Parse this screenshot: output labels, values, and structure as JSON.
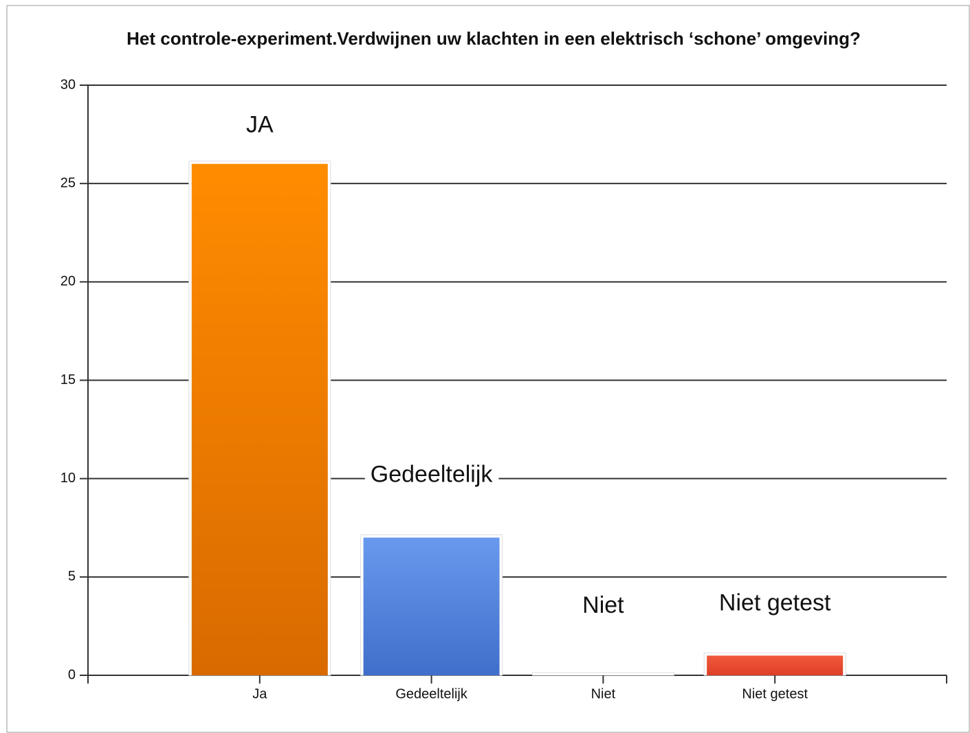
{
  "chart_data": {
    "type": "bar",
    "title": "Het controle-experiment.Verdwijnen uw klachten in een elektrisch ‘schone’ omgeving?",
    "categories": [
      "Ja",
      "Gedeeltelijk",
      "Niet",
      "Niet getest"
    ],
    "values": [
      26,
      7,
      0,
      1
    ],
    "colors": [
      "#f08400",
      "#5585dc",
      "#9a9a9a",
      "#e84a30"
    ],
    "annotations": [
      "JA",
      "Gedeeltelijk",
      "Niet",
      "Niet getest"
    ],
    "ylim": [
      0,
      30
    ],
    "yticks": [
      0,
      5,
      10,
      15,
      20,
      25,
      30
    ],
    "grid": true
  }
}
